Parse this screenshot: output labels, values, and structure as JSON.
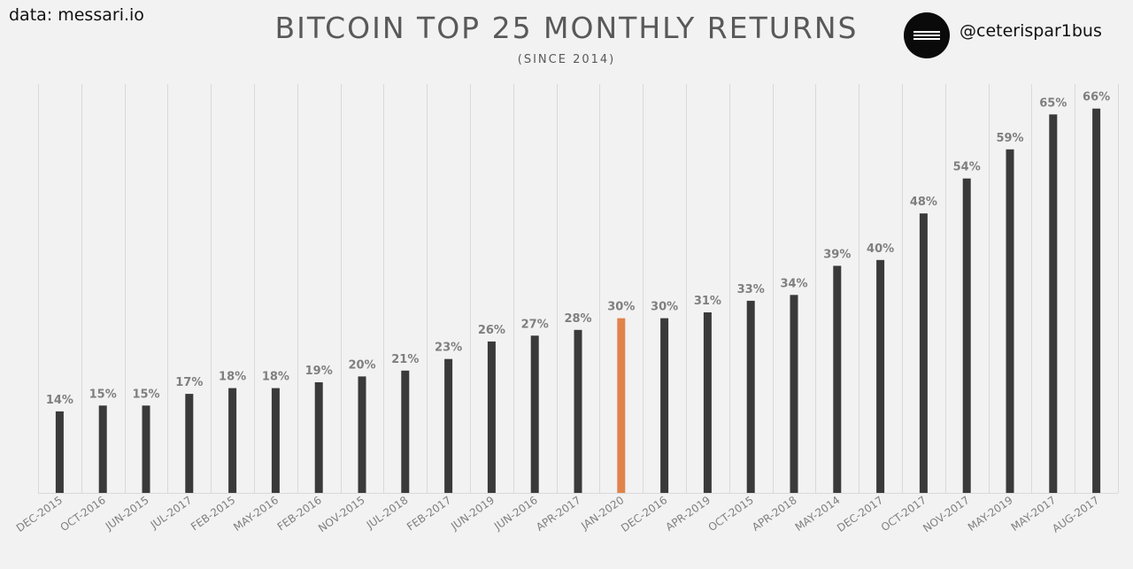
{
  "header": {
    "source": "data: messari.io",
    "handle": "@ceterispar1bus"
  },
  "colors": {
    "bar": "#3a3a3a",
    "highlight": "#e0834a",
    "grid": "#d9d9d9",
    "background": "#f2f2f2"
  },
  "chart_data": {
    "type": "bar",
    "title": "BITCOIN TOP 25 MONTHLY RETURNS",
    "subtitle": "(SINCE 2014)",
    "xlabel": "",
    "ylabel": "",
    "ylim": [
      0,
      70
    ],
    "grid": "vertical",
    "highlight_category": "JAN-2020",
    "categories": [
      "DEC-2015",
      "OCT-2016",
      "JUN-2015",
      "JUL-2017",
      "FEB-2015",
      "MAY-2016",
      "FEB-2016",
      "NOV-2015",
      "JUL-2018",
      "FEB-2017",
      "JUN-2019",
      "JUN-2016",
      "APR-2017",
      "JAN-2020",
      "DEC-2016",
      "APR-2019",
      "OCT-2015",
      "APR-2018",
      "MAY-2014",
      "DEC-2017",
      "OCT-2017",
      "NOV-2017",
      "MAY-2019",
      "MAY-2017",
      "AUG-2017"
    ],
    "values": [
      14,
      15,
      15,
      17,
      18,
      18,
      19,
      20,
      21,
      23,
      26,
      27,
      28,
      30,
      30,
      31,
      33,
      34,
      39,
      40,
      48,
      54,
      59,
      65,
      66
    ],
    "labels": [
      "14%",
      "15%",
      "15%",
      "17%",
      "18%",
      "18%",
      "19%",
      "20%",
      "21%",
      "23%",
      "26%",
      "27%",
      "28%",
      "30%",
      "30%",
      "31%",
      "33%",
      "34%",
      "39%",
      "40%",
      "48%",
      "54%",
      "59%",
      "65%",
      "66%"
    ]
  }
}
